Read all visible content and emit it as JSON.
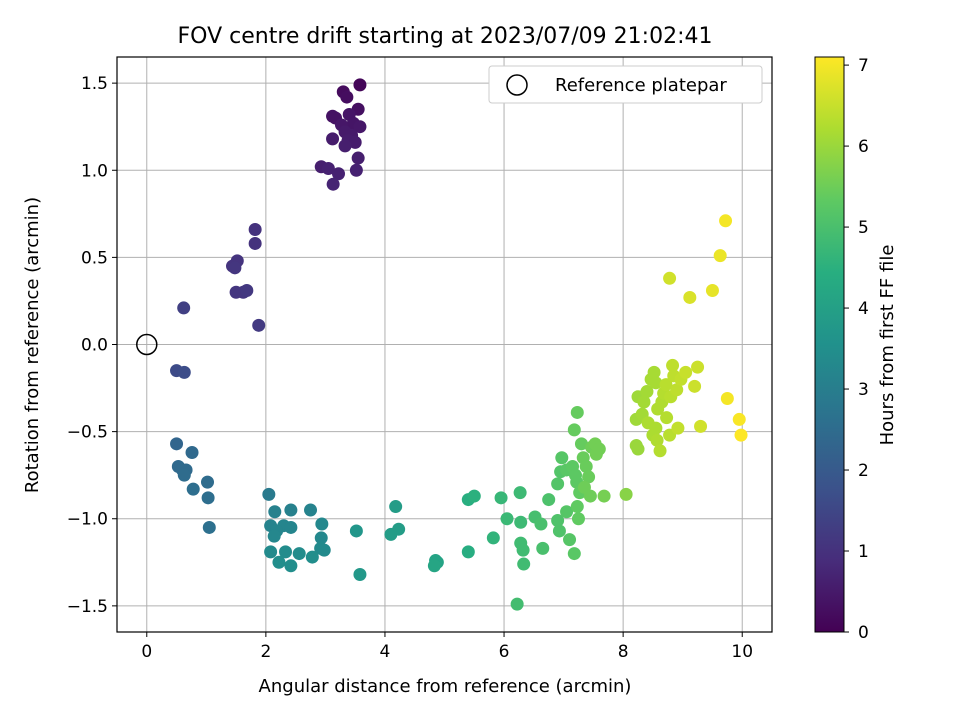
{
  "chart_data": {
    "type": "scatter",
    "title": "FOV centre drift starting at 2023/07/09 21:02:41",
    "xlabel": "Angular distance from reference (arcmin)",
    "ylabel": "Rotation from reference (arcmin)",
    "xlim": [
      -0.5,
      10.5
    ],
    "ylim": [
      -1.65,
      1.65
    ],
    "xticks": [
      0,
      2,
      4,
      6,
      8,
      10
    ],
    "yticks": [
      -1.5,
      -1.0,
      -0.5,
      0.0,
      0.5,
      1.0,
      1.5
    ],
    "grid": true,
    "legend": {
      "position": "top-right",
      "entries": [
        "Reference platepar"
      ]
    },
    "reference_point": {
      "x": 0.0,
      "y": 0.0,
      "label": "Reference platepar"
    },
    "colorbar": {
      "label": "Hours from first FF file",
      "colormap": "viridis",
      "range": [
        0,
        7.1
      ],
      "ticks": [
        0,
        1,
        2,
        3,
        4,
        5,
        6,
        7
      ]
    },
    "points": [
      {
        "x": 3.58,
        "y": 1.49,
        "c": 0.1
      },
      {
        "x": 3.3,
        "y": 1.45,
        "c": 0.2
      },
      {
        "x": 3.36,
        "y": 1.42,
        "c": 0.25
      },
      {
        "x": 3.55,
        "y": 1.35,
        "c": 0.3
      },
      {
        "x": 3.12,
        "y": 1.31,
        "c": 0.35
      },
      {
        "x": 3.17,
        "y": 1.3,
        "c": 0.35
      },
      {
        "x": 3.4,
        "y": 1.32,
        "c": 0.4
      },
      {
        "x": 3.47,
        "y": 1.27,
        "c": 0.4
      },
      {
        "x": 3.27,
        "y": 1.26,
        "c": 0.45
      },
      {
        "x": 3.58,
        "y": 1.25,
        "c": 0.45
      },
      {
        "x": 3.33,
        "y": 1.22,
        "c": 0.5
      },
      {
        "x": 3.44,
        "y": 1.2,
        "c": 0.5
      },
      {
        "x": 3.12,
        "y": 1.18,
        "c": 0.55
      },
      {
        "x": 3.38,
        "y": 1.17,
        "c": 0.55
      },
      {
        "x": 3.5,
        "y": 1.16,
        "c": 0.55
      },
      {
        "x": 3.33,
        "y": 1.14,
        "c": 0.6
      },
      {
        "x": 3.55,
        "y": 1.07,
        "c": 0.6
      },
      {
        "x": 2.93,
        "y": 1.02,
        "c": 0.6
      },
      {
        "x": 3.05,
        "y": 1.01,
        "c": 0.65
      },
      {
        "x": 3.22,
        "y": 0.98,
        "c": 0.65
      },
      {
        "x": 3.52,
        "y": 1.0,
        "c": 0.65
      },
      {
        "x": 3.13,
        "y": 0.92,
        "c": 0.7
      },
      {
        "x": 1.82,
        "y": 0.66,
        "c": 1.0
      },
      {
        "x": 1.82,
        "y": 0.58,
        "c": 1.0
      },
      {
        "x": 1.52,
        "y": 0.48,
        "c": 1.05
      },
      {
        "x": 1.44,
        "y": 0.45,
        "c": 1.05
      },
      {
        "x": 1.48,
        "y": 0.44,
        "c": 1.1
      },
      {
        "x": 1.5,
        "y": 0.3,
        "c": 1.1
      },
      {
        "x": 1.62,
        "y": 0.3,
        "c": 1.1
      },
      {
        "x": 1.68,
        "y": 0.31,
        "c": 1.15
      },
      {
        "x": 1.88,
        "y": 0.11,
        "c": 1.2
      },
      {
        "x": 0.62,
        "y": 0.21,
        "c": 1.35
      },
      {
        "x": 0.5,
        "y": -0.15,
        "c": 1.6
      },
      {
        "x": 0.63,
        "y": -0.16,
        "c": 1.65
      },
      {
        "x": 0.5,
        "y": -0.57,
        "c": 2.3
      },
      {
        "x": 0.76,
        "y": -0.62,
        "c": 2.4
      },
      {
        "x": 0.53,
        "y": -0.7,
        "c": 2.4
      },
      {
        "x": 0.6,
        "y": -0.72,
        "c": 2.45
      },
      {
        "x": 0.66,
        "y": -0.72,
        "c": 2.45
      },
      {
        "x": 0.63,
        "y": -0.75,
        "c": 2.5
      },
      {
        "x": 1.02,
        "y": -0.79,
        "c": 2.5
      },
      {
        "x": 0.78,
        "y": -0.83,
        "c": 2.55
      },
      {
        "x": 1.03,
        "y": -0.88,
        "c": 2.55
      },
      {
        "x": 1.05,
        "y": -1.05,
        "c": 2.6
      },
      {
        "x": 2.05,
        "y": -0.86,
        "c": 2.9
      },
      {
        "x": 2.42,
        "y": -0.95,
        "c": 3.1
      },
      {
        "x": 2.15,
        "y": -0.96,
        "c": 3.1
      },
      {
        "x": 2.75,
        "y": -0.95,
        "c": 3.15
      },
      {
        "x": 2.08,
        "y": -1.04,
        "c": 3.15
      },
      {
        "x": 2.3,
        "y": -1.04,
        "c": 3.2
      },
      {
        "x": 2.42,
        "y": -1.05,
        "c": 3.2
      },
      {
        "x": 2.18,
        "y": -1.07,
        "c": 3.2
      },
      {
        "x": 2.14,
        "y": -1.1,
        "c": 3.25
      },
      {
        "x": 2.94,
        "y": -1.03,
        "c": 3.3
      },
      {
        "x": 2.93,
        "y": -1.11,
        "c": 3.3
      },
      {
        "x": 2.92,
        "y": -1.17,
        "c": 3.35
      },
      {
        "x": 2.98,
        "y": -1.18,
        "c": 3.35
      },
      {
        "x": 2.08,
        "y": -1.19,
        "c": 3.35
      },
      {
        "x": 2.33,
        "y": -1.19,
        "c": 3.4
      },
      {
        "x": 2.56,
        "y": -1.2,
        "c": 3.4
      },
      {
        "x": 2.78,
        "y": -1.22,
        "c": 3.45
      },
      {
        "x": 2.22,
        "y": -1.25,
        "c": 3.45
      },
      {
        "x": 2.42,
        "y": -1.27,
        "c": 3.45
      },
      {
        "x": 3.52,
        "y": -1.07,
        "c": 3.7
      },
      {
        "x": 3.58,
        "y": -1.32,
        "c": 3.75
      },
      {
        "x": 4.18,
        "y": -0.93,
        "c": 3.9
      },
      {
        "x": 4.23,
        "y": -1.06,
        "c": 3.9
      },
      {
        "x": 4.1,
        "y": -1.09,
        "c": 3.9
      },
      {
        "x": 4.85,
        "y": -1.24,
        "c": 4.1
      },
      {
        "x": 4.88,
        "y": -1.25,
        "c": 4.1
      },
      {
        "x": 4.83,
        "y": -1.27,
        "c": 4.15
      },
      {
        "x": 5.4,
        "y": -1.19,
        "c": 4.4
      },
      {
        "x": 5.4,
        "y": -0.89,
        "c": 4.45
      },
      {
        "x": 5.5,
        "y": -0.87,
        "c": 4.5
      },
      {
        "x": 5.82,
        "y": -1.11,
        "c": 4.6
      },
      {
        "x": 5.95,
        "y": -0.88,
        "c": 4.7
      },
      {
        "x": 6.05,
        "y": -1.0,
        "c": 4.75
      },
      {
        "x": 6.27,
        "y": -0.85,
        "c": 4.8
      },
      {
        "x": 6.28,
        "y": -1.02,
        "c": 4.8
      },
      {
        "x": 6.28,
        "y": -1.14,
        "c": 4.85
      },
      {
        "x": 6.32,
        "y": -1.18,
        "c": 4.85
      },
      {
        "x": 6.33,
        "y": -1.26,
        "c": 4.85
      },
      {
        "x": 6.22,
        "y": -1.49,
        "c": 4.9
      },
      {
        "x": 6.52,
        "y": -0.99,
        "c": 4.95
      },
      {
        "x": 6.62,
        "y": -1.03,
        "c": 5.0
      },
      {
        "x": 6.65,
        "y": -1.17,
        "c": 5.0
      },
      {
        "x": 6.75,
        "y": -0.89,
        "c": 5.05
      },
      {
        "x": 6.9,
        "y": -1.01,
        "c": 5.1
      },
      {
        "x": 6.93,
        "y": -1.07,
        "c": 5.1
      },
      {
        "x": 6.9,
        "y": -0.8,
        "c": 5.15
      },
      {
        "x": 6.95,
        "y": -0.73,
        "c": 5.15
      },
      {
        "x": 6.97,
        "y": -0.65,
        "c": 5.2
      },
      {
        "x": 7.05,
        "y": -0.96,
        "c": 5.2
      },
      {
        "x": 7.1,
        "y": -1.12,
        "c": 5.2
      },
      {
        "x": 7.18,
        "y": -1.2,
        "c": 5.25
      },
      {
        "x": 7.05,
        "y": -0.72,
        "c": 5.25
      },
      {
        "x": 7.15,
        "y": -0.7,
        "c": 5.3
      },
      {
        "x": 7.2,
        "y": -0.75,
        "c": 5.3
      },
      {
        "x": 7.22,
        "y": -0.79,
        "c": 5.3
      },
      {
        "x": 7.27,
        "y": -0.85,
        "c": 5.35
      },
      {
        "x": 7.23,
        "y": -0.93,
        "c": 5.35
      },
      {
        "x": 7.25,
        "y": -1.0,
        "c": 5.35
      },
      {
        "x": 7.18,
        "y": -0.49,
        "c": 5.4
      },
      {
        "x": 7.23,
        "y": -0.39,
        "c": 5.4
      },
      {
        "x": 7.3,
        "y": -0.57,
        "c": 5.4
      },
      {
        "x": 7.33,
        "y": -0.65,
        "c": 5.45
      },
      {
        "x": 7.38,
        "y": -0.7,
        "c": 5.45
      },
      {
        "x": 7.42,
        "y": -0.76,
        "c": 5.45
      },
      {
        "x": 7.35,
        "y": -0.82,
        "c": 5.5
      },
      {
        "x": 7.45,
        "y": -0.87,
        "c": 5.5
      },
      {
        "x": 7.47,
        "y": -0.59,
        "c": 5.5
      },
      {
        "x": 7.53,
        "y": -0.57,
        "c": 5.55
      },
      {
        "x": 7.55,
        "y": -0.63,
        "c": 5.55
      },
      {
        "x": 7.6,
        "y": -0.6,
        "c": 5.55
      },
      {
        "x": 7.68,
        "y": -0.87,
        "c": 5.6
      },
      {
        "x": 8.05,
        "y": -0.86,
        "c": 5.8
      },
      {
        "x": 8.22,
        "y": -0.58,
        "c": 6.0
      },
      {
        "x": 8.25,
        "y": -0.6,
        "c": 6.0
      },
      {
        "x": 8.22,
        "y": -0.43,
        "c": 6.05
      },
      {
        "x": 8.25,
        "y": -0.3,
        "c": 6.05
      },
      {
        "x": 8.35,
        "y": -0.33,
        "c": 6.1
      },
      {
        "x": 8.32,
        "y": -0.4,
        "c": 6.1
      },
      {
        "x": 8.4,
        "y": -0.27,
        "c": 6.1
      },
      {
        "x": 8.47,
        "y": -0.2,
        "c": 6.15
      },
      {
        "x": 8.52,
        "y": -0.16,
        "c": 6.15
      },
      {
        "x": 8.55,
        "y": -0.22,
        "c": 6.15
      },
      {
        "x": 8.42,
        "y": -0.45,
        "c": 6.2
      },
      {
        "x": 8.5,
        "y": -0.52,
        "c": 6.2
      },
      {
        "x": 8.55,
        "y": -0.48,
        "c": 6.2
      },
      {
        "x": 8.57,
        "y": -0.55,
        "c": 6.25
      },
      {
        "x": 8.58,
        "y": -0.37,
        "c": 6.25
      },
      {
        "x": 8.65,
        "y": -0.33,
        "c": 6.25
      },
      {
        "x": 8.62,
        "y": -0.61,
        "c": 6.3
      },
      {
        "x": 8.68,
        "y": -0.28,
        "c": 6.3
      },
      {
        "x": 8.73,
        "y": -0.42,
        "c": 6.3
      },
      {
        "x": 8.78,
        "y": -0.52,
        "c": 6.35
      },
      {
        "x": 8.72,
        "y": -0.23,
        "c": 6.35
      },
      {
        "x": 8.8,
        "y": -0.3,
        "c": 6.35
      },
      {
        "x": 8.83,
        "y": -0.12,
        "c": 6.4
      },
      {
        "x": 8.85,
        "y": -0.18,
        "c": 6.4
      },
      {
        "x": 8.9,
        "y": -0.26,
        "c": 6.4
      },
      {
        "x": 8.92,
        "y": -0.48,
        "c": 6.45
      },
      {
        "x": 8.97,
        "y": -0.2,
        "c": 6.45
      },
      {
        "x": 9.05,
        "y": -0.16,
        "c": 6.5
      },
      {
        "x": 9.2,
        "y": -0.24,
        "c": 6.55
      },
      {
        "x": 9.25,
        "y": -0.13,
        "c": 6.55
      },
      {
        "x": 9.3,
        "y": -0.47,
        "c": 6.6
      },
      {
        "x": 8.78,
        "y": 0.38,
        "c": 6.6
      },
      {
        "x": 9.12,
        "y": 0.27,
        "c": 6.7
      },
      {
        "x": 9.5,
        "y": 0.31,
        "c": 6.85
      },
      {
        "x": 9.63,
        "y": 0.51,
        "c": 6.9
      },
      {
        "x": 9.72,
        "y": 0.71,
        "c": 7.0
      },
      {
        "x": 9.75,
        "y": -0.31,
        "c": 7.0
      },
      {
        "x": 9.95,
        "y": -0.43,
        "c": 7.05
      },
      {
        "x": 9.98,
        "y": -0.52,
        "c": 7.1
      }
    ]
  }
}
